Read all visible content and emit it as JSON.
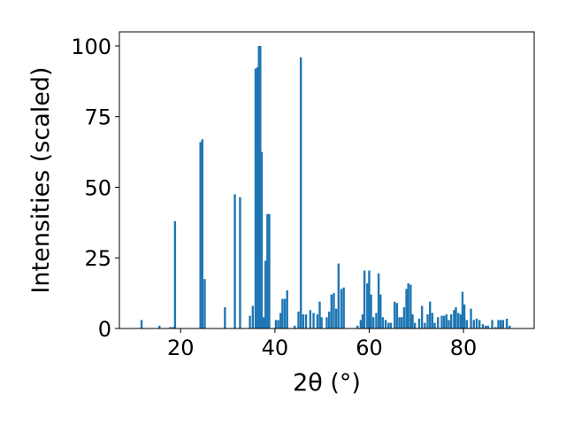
{
  "chart_data": {
    "type": "bar",
    "xlabel": "2θ (°)",
    "ylabel": "Intensities (scaled)",
    "xlim": [
      7,
      95
    ],
    "ylim": [
      0,
      105
    ],
    "grid": false,
    "bar_color": "#1f77b4",
    "bar_width": 0.45,
    "xticks": [
      20,
      40,
      60,
      80
    ],
    "yticks": [
      0,
      25,
      50,
      75,
      100
    ],
    "series": [
      {
        "x": [
          11.7,
          15.5,
          17.8,
          18.4,
          18.8,
          24.2,
          24.6,
          25.1,
          29.4,
          31.5,
          32.6,
          34.7,
          35.3,
          35.9,
          36.3,
          36.6,
          36.9,
          37.2,
          37.6,
          38.0,
          38.4,
          38.8,
          40.2,
          40.7,
          41.2,
          41.6,
          42.1,
          42.6,
          44.2,
          45.0,
          45.5,
          46.0,
          46.6,
          47.5,
          48.2,
          49.0,
          49.5,
          49.9,
          51.0,
          51.5,
          52.0,
          52.5,
          53.0,
          53.5,
          54.1,
          54.6,
          57.5,
          58.2,
          58.6,
          59.0,
          59.6,
          60.0,
          60.4,
          60.9,
          61.5,
          62.0,
          62.4,
          62.9,
          63.5,
          64.1,
          64.6,
          65.4,
          65.9,
          66.4,
          66.9,
          67.4,
          67.9,
          68.3,
          68.8,
          69.2,
          69.7,
          70.6,
          71.2,
          71.8,
          72.4,
          72.9,
          73.4,
          73.9,
          74.6,
          75.4,
          75.9,
          76.4,
          76.9,
          77.4,
          78.0,
          78.4,
          78.9,
          79.4,
          79.8,
          80.2,
          80.7,
          81.6,
          82.2,
          82.8,
          83.4,
          84.1,
          84.7,
          85.2,
          86.1,
          86.8,
          87.4,
          87.9,
          88.4,
          89.2,
          89.8
        ],
        "values": [
          3,
          1,
          0.5,
          0.5,
          38,
          66,
          67,
          17.5,
          7.5,
          47.5,
          46.5,
          4.5,
          8,
          92,
          92.5,
          100,
          100,
          62.5,
          4,
          24,
          40.5,
          40.5,
          3,
          3,
          5.5,
          10.5,
          10.5,
          13.5,
          1,
          6,
          96,
          5,
          5,
          6.5,
          5.5,
          5,
          9.5,
          4,
          4,
          6,
          12,
          12.5,
          7,
          23,
          14,
          14.5,
          1,
          3,
          5,
          20.5,
          16,
          20.5,
          12,
          4,
          5.5,
          19.5,
          12,
          4,
          3,
          2,
          2,
          9.5,
          9,
          4,
          4,
          7.5,
          14,
          16,
          15.5,
          5,
          2,
          3.5,
          8,
          2,
          5,
          9.5,
          5.5,
          2,
          4,
          4.5,
          4.5,
          5,
          3,
          5,
          6.5,
          7.5,
          5.5,
          5,
          13,
          8.5,
          3,
          7,
          3,
          3.5,
          3,
          1.5,
          1,
          1,
          3,
          0.5,
          3,
          3,
          3,
          3.5,
          1
        ]
      }
    ]
  }
}
